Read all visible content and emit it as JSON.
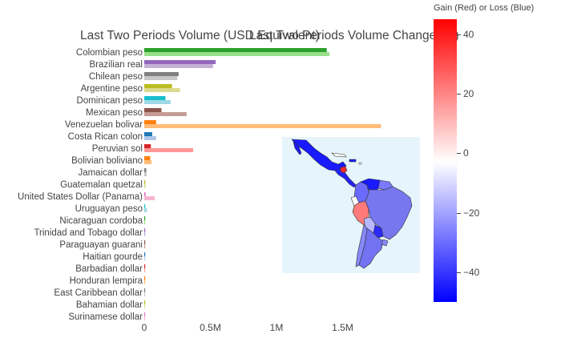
{
  "chart_data": [
    {
      "type": "bar",
      "orientation": "horizontal",
      "title": "Last Two Periods Volume (USD Equivalent)",
      "categories": [
        "Colombian peso",
        "Brazilian real",
        "Chilean peso",
        "Argentine peso",
        "Dominican peso",
        "Mexican peso",
        "Venezuelan bolivar",
        "Costa Rican colon",
        "Peruvian sol",
        "Bolivian boliviano",
        "Jamaican dollar",
        "Guatemalan quetzal",
        "United States Dollar (Panama)",
        "Uruguayan peso",
        "Nicaraguan cordoba",
        "Trinidad and Tobago dollar",
        "Paraguayan guarani",
        "Haitian gourde",
        "Barbadian dollar",
        "Honduran lempira",
        "East Caribbean dollar",
        "Bahamian dollar",
        "Surinamese dollar"
      ],
      "series": [
        {
          "values": [
            1380000,
            540000,
            260000,
            210000,
            160000,
            130000,
            90000,
            60000,
            50000,
            45000,
            15000,
            8000,
            10000,
            6000,
            2000,
            1500,
            1500,
            1000,
            800,
            800,
            500,
            500,
            300
          ]
        },
        {
          "values": [
            1400000,
            520000,
            250000,
            270000,
            200000,
            320000,
            1790000,
            90000,
            370000,
            55000,
            18000,
            10000,
            80000,
            20000,
            3000,
            2000,
            2000,
            1500,
            1000,
            1000,
            600,
            600,
            400
          ]
        }
      ],
      "bar_colors": [
        [
          "#2ca02c",
          "#98df8a"
        ],
        [
          "#9467bd",
          "#c5b0d5"
        ],
        [
          "#7f7f7f",
          "#c7c7c7"
        ],
        [
          "#bcbd22",
          "#dbdb8d"
        ],
        [
          "#17becf",
          "#9edae5"
        ],
        [
          "#8c564b",
          "#c49c94"
        ],
        [
          "#ff7f0e",
          "#ffbb78"
        ],
        [
          "#1f77b4",
          "#aec7e8"
        ],
        [
          "#d62728",
          "#ff9896"
        ],
        [
          "#ff7f0e",
          "#ffbb78"
        ],
        [
          "#7f7f7f",
          "#c7c7c7"
        ],
        [
          "#bcbd22",
          "#dbdb8d"
        ],
        [
          "#e377c2",
          "#f7b6d2"
        ],
        [
          "#17becf",
          "#9edae5"
        ],
        [
          "#2ca02c",
          "#98df8a"
        ],
        [
          "#9467bd",
          "#c5b0d5"
        ],
        [
          "#8c564b",
          "#c49c94"
        ],
        [
          "#1f77b4",
          "#aec7e8"
        ],
        [
          "#d62728",
          "#ff9896"
        ],
        [
          "#ff7f0e",
          "#ffbb78"
        ],
        [
          "#7f7f7f",
          "#c7c7c7"
        ],
        [
          "#bcbd22",
          "#dbdb8d"
        ],
        [
          "#e377c2",
          "#f7b6d2"
        ]
      ],
      "x_ticks": [
        0,
        500000,
        1000000,
        1500000
      ],
      "x_tick_labels": [
        "0",
        "0.5M",
        "1M",
        "1.5M"
      ],
      "xlim": [
        0,
        1800000
      ],
      "grid": false
    },
    {
      "type": "choropleth",
      "title": "Last Two Periods Volume Change (%)",
      "colorscale": [
        "#0000ff",
        "#ffffff",
        "#ff0000"
      ],
      "range": [
        -50,
        45
      ],
      "colorbar_title": "Gain (Red) or Loss (Blue)",
      "colorbar_ticks": [
        40,
        20,
        0,
        -20,
        -40
      ],
      "colorbar_tick_labels": [
        "40",
        "20",
        "0",
        "−20",
        "−40"
      ],
      "land_fill": "#ffffff",
      "ocean_fill": "#e5f5fb"
    }
  ]
}
